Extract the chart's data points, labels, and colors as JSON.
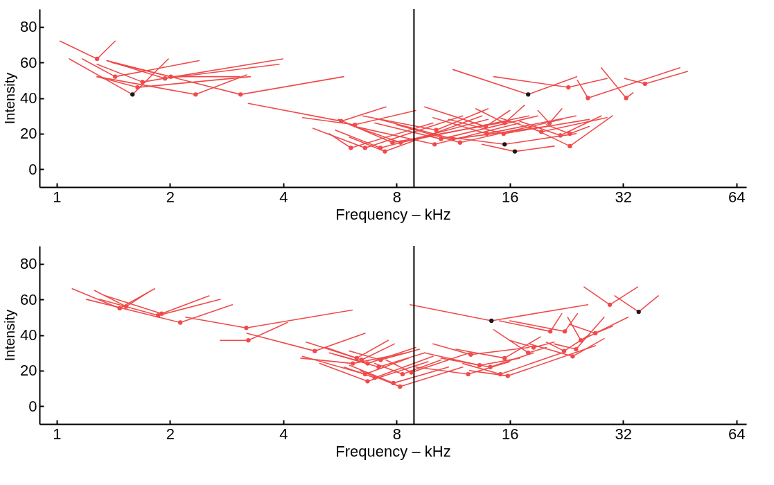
{
  "chart_data": [
    {
      "type": "line",
      "xlabel": "Frequency – kHz",
      "ylabel": "Intensity",
      "log": "x",
      "xlim": [
        0.9,
        68
      ],
      "xticks": [
        1,
        2,
        4,
        8,
        16,
        32,
        64
      ],
      "ylim": [
        -10,
        90
      ],
      "yticks": [
        0,
        20,
        40,
        60,
        80
      ],
      "ref_lines": [
        {
          "axis": "x",
          "value": 8.9,
          "color": "#000000"
        }
      ],
      "series": [
        {
          "color": "#f04a4a",
          "x": [
            1.02,
            1.28,
            1.43
          ],
          "values": [
            72,
            62,
            72
          ]
        },
        {
          "color": "#f04a4a",
          "x": [
            1.08,
            1.59,
            1.98
          ],
          "values": [
            62,
            42,
            62
          ]
        },
        {
          "color": "#f04a4a",
          "x": [
            1.17,
            1.43,
            2.39
          ],
          "values": [
            62,
            52,
            61
          ]
        },
        {
          "color": "#f04a4a",
          "x": [
            1.28,
            1.69,
            3.99
          ],
          "values": [
            59,
            49,
            62
          ]
        },
        {
          "color": "#f04a4a",
          "x": [
            1.28,
            1.64,
            3.27
          ],
          "values": [
            52,
            46,
            52
          ]
        },
        {
          "color": "#f04a4a",
          "x": [
            1.36,
            1.94,
            3.9
          ],
          "values": [
            61,
            51,
            59
          ]
        },
        {
          "color": "#f04a4a",
          "x": [
            1.4,
            2.01,
            3.07
          ],
          "values": [
            60,
            52,
            52
          ]
        },
        {
          "color": "#f04a4a",
          "x": [
            1.28,
            2.34,
            3.2
          ],
          "values": [
            52,
            42,
            53
          ]
        },
        {
          "color": "#f04a4a",
          "x": [
            1.36,
            3.08,
            5.79
          ],
          "values": [
            61,
            42,
            52
          ]
        },
        {
          "color": "#f04a4a",
          "x": [
            3.23,
            5.7,
            7.5
          ],
          "values": [
            37,
            27,
            35
          ]
        },
        {
          "color": "#f04a4a",
          "x": [
            4.5,
            6.2,
            9
          ],
          "values": [
            29,
            25,
            33
          ]
        },
        {
          "color": "#f04a4a",
          "x": [
            5.3,
            6.05,
            10
          ],
          "values": [
            20,
            12,
            26
          ]
        },
        {
          "color": "#f04a4a",
          "x": [
            4.8,
            6.6,
            12
          ],
          "values": [
            23,
            12,
            30
          ]
        },
        {
          "color": "#f04a4a",
          "x": [
            5.5,
            7.25,
            14
          ],
          "values": [
            22,
            12,
            28
          ]
        },
        {
          "color": "#f04a4a",
          "x": [
            6,
            7.45,
            13.5
          ],
          "values": [
            18,
            10,
            30
          ]
        },
        {
          "color": "#f04a4a",
          "x": [
            5.6,
            7.8,
            16
          ],
          "values": [
            28,
            15,
            27
          ]
        },
        {
          "color": "#f04a4a",
          "x": [
            6,
            8.2,
            18
          ],
          "values": [
            25,
            15,
            30
          ]
        },
        {
          "color": "#f04a4a",
          "x": [
            6.5,
            10.2,
            14
          ],
          "values": [
            30,
            22,
            34
          ]
        },
        {
          "color": "#f04a4a",
          "x": [
            6.2,
            10.1,
            17
          ],
          "values": [
            24,
            14,
            26
          ]
        },
        {
          "color": "#f04a4a",
          "x": [
            7,
            10.5,
            19
          ],
          "values": [
            26,
            17,
            30
          ]
        },
        {
          "color": "#f04a4a",
          "x": [
            7.2,
            11.3,
            20
          ],
          "values": [
            28,
            17,
            24
          ]
        },
        {
          "color": "#f04a4a",
          "x": [
            8,
            11.8,
            22
          ],
          "values": [
            25,
            15,
            28
          ]
        },
        {
          "color": "#f04a4a",
          "x": [
            9.5,
            13.8,
            16
          ],
          "values": [
            35,
            24,
            33
          ]
        },
        {
          "color": "#f04a4a",
          "x": [
            10,
            13.9,
            24
          ],
          "values": [
            29,
            20,
            30
          ]
        },
        {
          "color": "#f04a4a",
          "x": [
            13,
            15.5,
            17.5
          ],
          "values": [
            34,
            26,
            36
          ]
        },
        {
          "color": "#f04a4a",
          "x": [
            11,
            15.4,
            26
          ],
          "values": [
            28,
            20,
            28
          ]
        },
        {
          "color": "#f04a4a",
          "x": [
            11,
            15.5,
            24
          ],
          "values": [
            18,
            14,
            20
          ]
        },
        {
          "color": "#f04a4a",
          "x": [
            13.5,
            16.5,
            21
          ],
          "values": [
            14,
            10,
            13
          ]
        },
        {
          "color": "#f04a4a",
          "x": [
            15,
            19.4,
            29
          ],
          "values": [
            29,
            21,
            29
          ]
        },
        {
          "color": "#f04a4a",
          "x": [
            19,
            20.4,
            22
          ],
          "values": [
            33,
            26,
            34
          ]
        },
        {
          "color": "#f04a4a",
          "x": [
            17,
            21.8,
            28
          ],
          "values": [
            27,
            19,
            30
          ]
        },
        {
          "color": "#f04a4a",
          "x": [
            20,
            23.1,
            26
          ],
          "values": [
            25,
            20,
            24
          ]
        },
        {
          "color": "#f04a4a",
          "x": [
            18,
            23.1,
            30
          ],
          "values": [
            24,
            13,
            30
          ]
        },
        {
          "color": "#f04a4a",
          "x": [
            11.3,
            17.9,
            24.1
          ],
          "values": [
            56,
            42,
            52
          ]
        },
        {
          "color": "#f04a4a",
          "x": [
            14.5,
            22.9,
            29
          ],
          "values": [
            52,
            46,
            51
          ]
        },
        {
          "color": "#f04a4a",
          "x": [
            24.2,
            25.8,
            45.3
          ],
          "values": [
            50,
            40,
            57
          ]
        },
        {
          "color": "#f04a4a",
          "x": [
            28,
            32.6,
            34
          ],
          "values": [
            57,
            40,
            43
          ]
        },
        {
          "color": "#f04a4a",
          "x": [
            32.3,
            36.6,
            47.5
          ],
          "values": [
            51,
            48,
            55
          ]
        },
        {
          "type": "scatter",
          "color": "#f04a4a",
          "x": [
            1.28,
            1.43,
            1.69,
            1.64,
            1.94,
            2.01,
            2.34,
            3.08,
            5.7,
            6.2,
            6.05,
            6.6,
            7.25,
            7.45,
            7.8,
            8.2,
            10.2,
            10.1,
            10.5,
            11.3,
            11.8,
            13.8,
            13.9,
            15.5,
            15.4,
            19.4,
            20.4,
            21.8,
            23.1,
            23.1,
            22.9,
            25.8,
            32.6,
            36.6
          ],
          "values": [
            62,
            52,
            49,
            46,
            51,
            52,
            42,
            42,
            27,
            25,
            12,
            12,
            12,
            10,
            15,
            15,
            22,
            14,
            17,
            17,
            15,
            24,
            20,
            26,
            20,
            21,
            26,
            19,
            20,
            13,
            46,
            40,
            40,
            48
          ]
        },
        {
          "type": "scatter",
          "color": "#1a1a1a",
          "x": [
            1.59,
            17.9,
            15.5,
            16.5
          ],
          "values": [
            42,
            42,
            14,
            10
          ]
        }
      ]
    },
    {
      "type": "line",
      "xlabel": "Frequency – kHz",
      "ylabel": "Intensity",
      "log": "x",
      "xlim": [
        0.9,
        68
      ],
      "xticks": [
        1,
        2,
        4,
        8,
        16,
        32,
        64
      ],
      "ylim": [
        -10,
        90
      ],
      "yticks": [
        0,
        20,
        40,
        60,
        80
      ],
      "ref_lines": [
        {
          "axis": "x",
          "value": 8.9,
          "color": "#000000"
        }
      ],
      "series": [
        {
          "color": "#f04a4a",
          "x": [
            1.1,
            1.47,
            1.82
          ],
          "values": [
            66,
            55,
            66
          ]
        },
        {
          "color": "#f04a4a",
          "x": [
            1.26,
            1.53,
            1.75
          ],
          "values": [
            65,
            56,
            64
          ]
        },
        {
          "color": "#f04a4a",
          "x": [
            1.35,
            1.9,
            2.54
          ],
          "values": [
            62,
            52,
            62
          ]
        },
        {
          "color": "#f04a4a",
          "x": [
            1.3,
            1.86,
            2.72
          ],
          "values": [
            60,
            51,
            60
          ]
        },
        {
          "color": "#f04a4a",
          "x": [
            1.2,
            2.13,
            2.93
          ],
          "values": [
            60,
            47,
            57
          ]
        },
        {
          "color": "#f04a4a",
          "x": [
            2.2,
            3.19,
            6.1
          ],
          "values": [
            50,
            44,
            54
          ]
        },
        {
          "color": "#f04a4a",
          "x": [
            2.72,
            3.23,
            4.1
          ],
          "values": [
            37,
            37,
            47
          ]
        },
        {
          "color": "#f04a4a",
          "x": [
            3.2,
            4.85,
            6.6
          ],
          "values": [
            41,
            31,
            41
          ]
        },
        {
          "color": "#f04a4a",
          "x": [
            4.6,
            6.27,
            7.6
          ],
          "values": [
            36,
            27,
            37
          ]
        },
        {
          "color": "#f04a4a",
          "x": [
            5.2,
            6.46,
            7.9
          ],
          "values": [
            33,
            26,
            35
          ]
        },
        {
          "color": "#f04a4a",
          "x": [
            4.45,
            6.12,
            8.5
          ],
          "values": [
            27,
            24,
            30
          ]
        },
        {
          "color": "#f04a4a",
          "x": [
            5.3,
            6.7,
            9
          ],
          "values": [
            30,
            24,
            33
          ]
        },
        {
          "color": "#f04a4a",
          "x": [
            6,
            7.26,
            9.2
          ],
          "values": [
            31,
            26,
            32
          ]
        },
        {
          "color": "#f04a4a",
          "x": [
            5.5,
            7.17,
            9.5
          ],
          "values": [
            29,
            22,
            30
          ]
        },
        {
          "color": "#f04a4a",
          "x": [
            4.5,
            6.6,
            8.6
          ],
          "values": [
            28,
            18,
            27
          ]
        },
        {
          "color": "#f04a4a",
          "x": [
            5,
            6.7,
            9.7
          ],
          "values": [
            24,
            14,
            25
          ]
        },
        {
          "color": "#f04a4a",
          "x": [
            5.8,
            7,
            10
          ],
          "values": [
            22,
            16,
            28
          ]
        },
        {
          "color": "#f04a4a",
          "x": [
            6,
            7.85,
            11
          ],
          "values": [
            23,
            13,
            22
          ]
        },
        {
          "color": "#f04a4a",
          "x": [
            6.4,
            8.17,
            12
          ],
          "values": [
            20,
            11,
            22
          ]
        },
        {
          "color": "#f04a4a",
          "x": [
            7,
            8.3,
            10.5
          ],
          "values": [
            24,
            18,
            26
          ]
        },
        {
          "color": "#f04a4a",
          "x": [
            7.5,
            8.76,
            12.5
          ],
          "values": [
            26,
            19,
            30
          ]
        },
        {
          "color": "#f04a4a",
          "x": [
            8.7,
            14.3,
            25.8
          ],
          "values": [
            57,
            48,
            57
          ]
        },
        {
          "color": "#f04a4a",
          "x": [
            25.2,
            29.5,
            35
          ],
          "values": [
            67,
            57,
            67
          ]
        },
        {
          "color": "#f04a4a",
          "x": [
            30.4,
            35.2,
            39.7
          ],
          "values": [
            62,
            53,
            62
          ]
        },
        {
          "color": "#f04a4a",
          "x": [
            15,
            20.5,
            22
          ],
          "values": [
            48,
            42,
            52
          ]
        },
        {
          "color": "#f04a4a",
          "x": [
            16,
            22.4,
            24.2
          ],
          "values": [
            48,
            42,
            52
          ]
        },
        {
          "color": "#f04a4a",
          "x": [
            10,
            12.6,
            18
          ],
          "values": [
            35,
            29,
            33
          ]
        },
        {
          "color": "#f04a4a",
          "x": [
            11.5,
            15.5,
            19.3
          ],
          "values": [
            32,
            27,
            39
          ]
        },
        {
          "color": "#f04a4a",
          "x": [
            9.5,
            13.3,
            17
          ],
          "values": [
            30,
            23,
            27
          ]
        },
        {
          "color": "#f04a4a",
          "x": [
            10.5,
            14.2,
            18.5
          ],
          "values": [
            27,
            22,
            30
          ]
        },
        {
          "color": "#f04a4a",
          "x": [
            9,
            12.4,
            16
          ],
          "values": [
            22,
            18,
            25
          ]
        },
        {
          "color": "#f04a4a",
          "x": [
            12,
            15.1,
            22
          ],
          "values": [
            24,
            18,
            30
          ]
        },
        {
          "color": "#f04a4a",
          "x": [
            12.5,
            15.8,
            27
          ],
          "values": [
            20,
            17,
            34
          ]
        },
        {
          "color": "#f04a4a",
          "x": [
            14.5,
            17.9,
            20
          ],
          "values": [
            43,
            30,
            33
          ]
        },
        {
          "color": "#f04a4a",
          "x": [
            16,
            18.5,
            21
          ],
          "values": [
            37,
            33,
            36
          ]
        },
        {
          "color": "#f04a4a",
          "x": [
            20,
            22.3,
            26
          ],
          "values": [
            36,
            31,
            40
          ]
        },
        {
          "color": "#f04a4a",
          "x": [
            18,
            23.5,
            28.5
          ],
          "values": [
            35,
            28,
            38
          ]
        },
        {
          "color": "#f04a4a",
          "x": [
            21,
            24,
            28.5
          ],
          "values": [
            35,
            32,
            50
          ]
        },
        {
          "color": "#f04a4a",
          "x": [
            22.8,
            24.7,
            33
          ],
          "values": [
            50,
            37,
            50
          ]
        },
        {
          "color": "#f04a4a",
          "x": [
            23,
            27,
            30
          ],
          "values": [
            46,
            41,
            45
          ]
        },
        {
          "type": "scatter",
          "color": "#f04a4a",
          "x": [
            1.47,
            1.53,
            1.9,
            1.86,
            2.13,
            3.19,
            3.23,
            4.85,
            6.27,
            6.46,
            6.12,
            6.7,
            7.26,
            7.17,
            6.6,
            6.7,
            7,
            7.85,
            8.17,
            8.3,
            8.76,
            29.5,
            20.5,
            22.4,
            12.6,
            15.5,
            13.3,
            14.2,
            12.4,
            15.1,
            15.8,
            17.9,
            18.5,
            22.3,
            23.5,
            24,
            24.7,
            27
          ],
          "values": [
            55,
            56,
            52,
            51,
            47,
            44,
            37,
            31,
            27,
            26,
            24,
            24,
            26,
            22,
            18,
            14,
            16,
            13,
            11,
            18,
            19,
            57,
            42,
            42,
            29,
            27,
            23,
            22,
            18,
            18,
            17,
            30,
            33,
            31,
            28,
            32,
            37,
            41
          ]
        },
        {
          "type": "scatter",
          "color": "#1a1a1a",
          "x": [
            14.3,
            35.2
          ],
          "values": [
            48,
            53
          ]
        }
      ]
    }
  ]
}
